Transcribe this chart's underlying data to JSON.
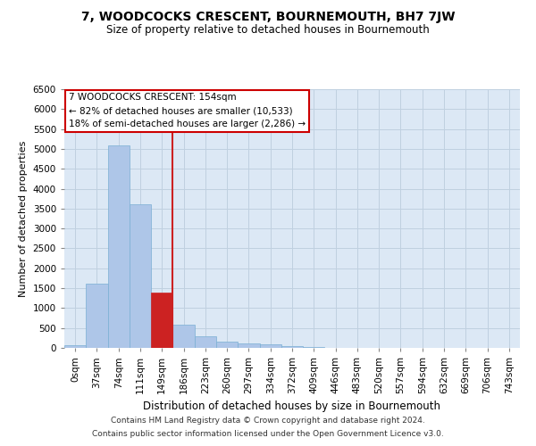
{
  "title": "7, WOODCOCKS CRESCENT, BOURNEMOUTH, BH7 7JW",
  "subtitle": "Size of property relative to detached houses in Bournemouth",
  "xlabel": "Distribution of detached houses by size in Bournemouth",
  "ylabel": "Number of detached properties",
  "footnote1": "Contains HM Land Registry data © Crown copyright and database right 2024.",
  "footnote2": "Contains public sector information licensed under the Open Government Licence v3.0.",
  "annotation_line1": "7 WOODCOCKS CRESCENT: 154sqm",
  "annotation_line2": "← 82% of detached houses are smaller (10,533)",
  "annotation_line3": "18% of semi-detached houses are larger (2,286) →",
  "bar_labels": [
    "0sqm",
    "37sqm",
    "74sqm",
    "111sqm",
    "149sqm",
    "186sqm",
    "223sqm",
    "260sqm",
    "297sqm",
    "334sqm",
    "372sqm",
    "409sqm",
    "446sqm",
    "483sqm",
    "520sqm",
    "557sqm",
    "594sqm",
    "632sqm",
    "669sqm",
    "706sqm",
    "743sqm"
  ],
  "bar_values": [
    75,
    1620,
    5080,
    3600,
    1400,
    590,
    300,
    155,
    110,
    90,
    40,
    20,
    10,
    5,
    5,
    0,
    0,
    0,
    0,
    0,
    5
  ],
  "bar_color": "#aec6e8",
  "bar_edge_color": "#7aafd4",
  "highlight_bar_index": 4,
  "highlight_color": "#cc2222",
  "ylim": [
    0,
    6500
  ],
  "yticks": [
    0,
    500,
    1000,
    1500,
    2000,
    2500,
    3000,
    3500,
    4000,
    4500,
    5000,
    5500,
    6000,
    6500
  ],
  "background_color": "#ffffff",
  "plot_bg_color": "#dce8f5",
  "grid_color": "#c0d0e0",
  "fig_width": 6.0,
  "fig_height": 5.0,
  "title_fontsize": 10,
  "subtitle_fontsize": 8.5,
  "xlabel_fontsize": 8.5,
  "ylabel_fontsize": 8,
  "tick_fontsize": 7.5,
  "annot_fontsize": 7.5
}
